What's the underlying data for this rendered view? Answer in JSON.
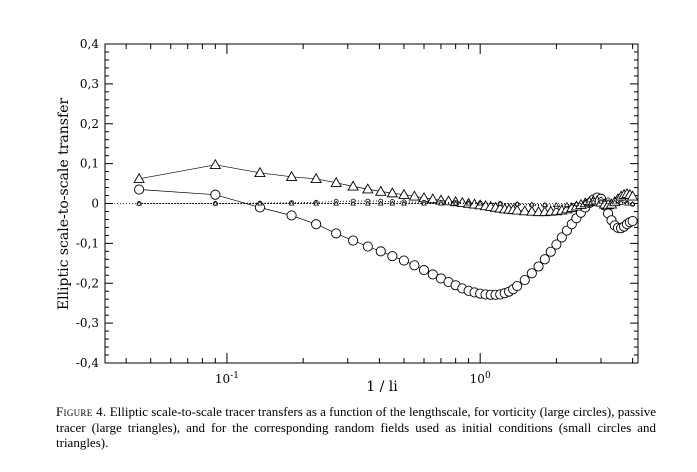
{
  "chart_data": {
    "type": "scatter",
    "title": "",
    "xlabel": "1 / li",
    "ylabel": "Elliptic scale-to-scale transfer",
    "xscale": "log",
    "xlim": [
      0.033,
      4.2
    ],
    "ylim": [
      -0.4,
      0.4
    ],
    "xticks": [
      {
        "value": 0.1,
        "base": "10",
        "exp": "-1"
      },
      {
        "value": 1,
        "base": "10",
        "exp": "0"
      }
    ],
    "yticks": [
      {
        "value": 0.4,
        "label": "0,4"
      },
      {
        "value": 0.3,
        "label": "0,3"
      },
      {
        "value": 0.2,
        "label": "0,2"
      },
      {
        "value": 0.1,
        "label": "0,1"
      },
      {
        "value": 0,
        "label": "0"
      },
      {
        "value": -0.1,
        "label": "-0,1"
      },
      {
        "value": -0.2,
        "label": "-0,2"
      },
      {
        "value": -0.3,
        "label": "-0,3"
      },
      {
        "value": -0.4,
        "label": "-0,4"
      }
    ],
    "series": [
      {
        "name": "vorticity (large circles)",
        "marker": "circle-large",
        "line": "solid",
        "x": [
          0.045,
          0.09,
          0.135,
          0.18,
          0.225,
          0.27,
          0.315,
          0.36,
          0.405,
          0.45,
          0.5,
          0.55,
          0.6,
          0.65,
          0.7,
          0.75,
          0.8,
          0.85,
          0.9,
          0.95,
          1.0,
          1.05,
          1.1,
          1.15,
          1.2,
          1.25,
          1.3,
          1.35,
          1.4,
          1.5,
          1.6,
          1.7,
          1.8,
          1.9,
          2.0,
          2.1,
          2.2,
          2.3,
          2.4,
          2.5,
          2.6,
          2.7,
          2.8,
          2.9,
          3.0,
          3.1,
          3.2,
          3.3,
          3.4,
          3.5,
          3.6,
          3.7,
          3.8,
          3.9,
          4.0
        ],
        "y": [
          0.035,
          0.022,
          -0.01,
          -0.03,
          -0.052,
          -0.075,
          -0.093,
          -0.108,
          -0.12,
          -0.132,
          -0.143,
          -0.155,
          -0.167,
          -0.178,
          -0.188,
          -0.197,
          -0.205,
          -0.213,
          -0.219,
          -0.223,
          -0.226,
          -0.228,
          -0.229,
          -0.229,
          -0.228,
          -0.225,
          -0.221,
          -0.215,
          -0.207,
          -0.192,
          -0.175,
          -0.158,
          -0.14,
          -0.121,
          -0.103,
          -0.085,
          -0.068,
          -0.052,
          -0.037,
          -0.023,
          -0.01,
          0.001,
          0.01,
          0.015,
          0.012,
          -0.005,
          -0.025,
          -0.042,
          -0.055,
          -0.061,
          -0.062,
          -0.058,
          -0.052,
          -0.047,
          -0.044
        ]
      },
      {
        "name": "passive tracer (large triangles)",
        "marker": "triangle-large",
        "line": "solid",
        "x": [
          0.045,
          0.09,
          0.135,
          0.18,
          0.225,
          0.27,
          0.315,
          0.36,
          0.405,
          0.45,
          0.5,
          0.55,
          0.6,
          0.65,
          0.7,
          0.75,
          0.8,
          0.85,
          0.9,
          0.95,
          1.0,
          1.05,
          1.1,
          1.15,
          1.2,
          1.25,
          1.3,
          1.35,
          1.4,
          1.5,
          1.6,
          1.7,
          1.8,
          1.9,
          2.0,
          2.1,
          2.2,
          2.3,
          2.4,
          2.5,
          2.6,
          2.7,
          2.8,
          2.9,
          3.0,
          3.1,
          3.2,
          3.3,
          3.4,
          3.5,
          3.6,
          3.7,
          3.8,
          3.9,
          4.0
        ],
        "y": [
          0.062,
          0.097,
          0.077,
          0.067,
          0.062,
          0.052,
          0.043,
          0.036,
          0.03,
          0.026,
          0.022,
          0.018,
          0.014,
          0.011,
          0.008,
          0.006,
          0.004,
          0.002,
          0.0,
          -0.002,
          -0.004,
          -0.006,
          -0.008,
          -0.01,
          -0.012,
          -0.014,
          -0.015,
          -0.016,
          -0.017,
          -0.019,
          -0.02,
          -0.021,
          -0.021,
          -0.02,
          -0.019,
          -0.017,
          -0.014,
          -0.011,
          -0.007,
          -0.003,
          0.001,
          0.004,
          0.006,
          0.006,
          0.003,
          -0.002,
          -0.004,
          -0.002,
          0.004,
          0.011,
          0.018,
          0.022,
          0.024,
          0.022,
          0.018
        ]
      },
      {
        "name": "random field (small circles)",
        "marker": "circle-small",
        "line": "dotted",
        "x": [
          0.045,
          0.09,
          0.135,
          0.18,
          0.225,
          0.27,
          0.315,
          0.36,
          0.405,
          0.45,
          0.5,
          0.6,
          0.7,
          0.8,
          0.9,
          1.0,
          1.2,
          1.4,
          1.6,
          1.8,
          2.0,
          2.2,
          2.4,
          2.6,
          2.8,
          3.0,
          3.2,
          3.4,
          3.6,
          3.8,
          4.0
        ],
        "y": [
          0.0,
          0.0,
          0.001,
          0.002,
          0.003,
          0.005,
          0.006,
          0.006,
          0.006,
          0.005,
          0.004,
          0.003,
          0.003,
          0.002,
          0.001,
          0.001,
          0.0,
          -0.002,
          -0.004,
          -0.006,
          -0.008,
          -0.006,
          -0.002,
          0.003,
          0.008,
          0.01,
          0.009,
          0.007,
          0.004,
          0.001,
          -0.002
        ]
      },
      {
        "name": "random field (small triangles)",
        "marker": "triangle-small",
        "line": "dotted",
        "x": [
          0.045,
          0.09,
          0.135,
          0.18,
          0.225,
          0.27,
          0.315,
          0.36,
          0.405,
          0.45,
          0.5,
          0.6,
          0.7,
          0.8,
          0.9,
          1.0,
          1.2,
          1.4,
          1.6,
          1.8,
          2.0,
          2.2,
          2.4,
          2.6,
          2.8,
          3.0,
          3.2,
          3.4,
          3.6,
          3.8,
          4.0
        ],
        "y": [
          0.0,
          0.0,
          0.0,
          0.0,
          0.0,
          0.0,
          0.0,
          0.0,
          0.0,
          0.0,
          0.0,
          0.0,
          0.0,
          0.0,
          0.0,
          0.0,
          0.0,
          -0.001,
          -0.002,
          -0.003,
          -0.004,
          -0.003,
          -0.001,
          0.002,
          0.004,
          0.005,
          0.004,
          0.003,
          0.002,
          0.0,
          -0.001
        ]
      }
    ]
  },
  "caption": {
    "label": "Figure 4.",
    "text": " Elliptic scale-to-scale tracer transfers as a function of the lengthscale, for vorticity (large circles), passive tracer (large triangles), and for the corresponding random fields used as initial conditions (small circles and triangles)."
  }
}
